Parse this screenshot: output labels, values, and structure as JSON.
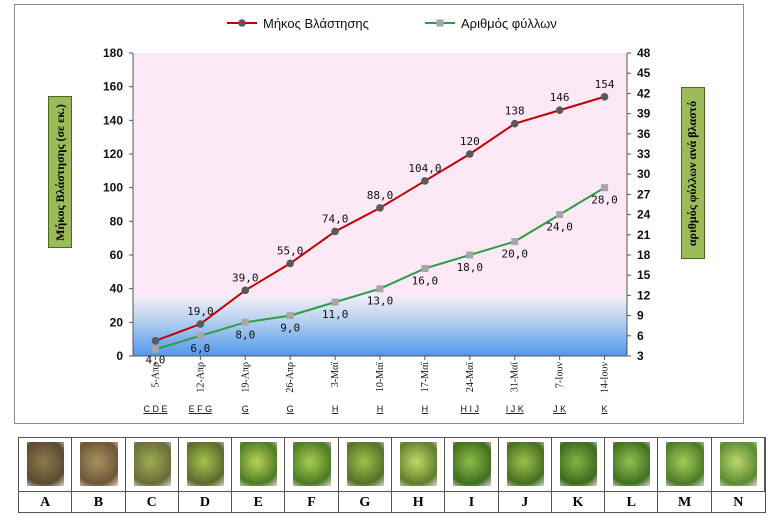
{
  "chart_data": {
    "type": "line",
    "title": "",
    "x": [
      "5-Απρ",
      "12-Απρ",
      "19-Απρ",
      "26-Απρ",
      "3-Μαϊ",
      "10-Μαϊ",
      "17-Μαϊ",
      "24-Μαϊ",
      "31-Μαϊ",
      "7-Ιουν",
      "14-Ιουν"
    ],
    "stages": [
      "C D E",
      "E F G",
      "G",
      "G",
      "H",
      "H",
      "H",
      "H I J",
      "I J K",
      "J K",
      "K"
    ],
    "series": [
      {
        "name": "Μήκος Βλάστησης",
        "axis": "left",
        "color": "#c00000",
        "marker_color": "#595959",
        "values": [
          9,
          19,
          39,
          55,
          74,
          88,
          104,
          120,
          138,
          146,
          154
        ],
        "labels": [
          "",
          "19,0",
          "39,0",
          "55,0",
          "74,0",
          "88,0",
          "104,0",
          "120",
          "138",
          "146",
          "154"
        ]
      },
      {
        "name": "Αριθμός φύλλων",
        "axis": "right",
        "color": "#2e9e45",
        "marker_color": "#a6a6a6",
        "values": [
          4,
          6,
          8,
          9,
          11,
          13,
          16,
          18,
          20,
          24,
          28
        ],
        "labels": [
          "4,0",
          "6,0",
          "8,0",
          "9,0",
          "11,0",
          "13,0",
          "16,0",
          "18,0",
          "20,0",
          "24,0",
          "28,0"
        ]
      }
    ],
    "ylabel": "Μήκος Βλάστησης (σε εκ.)",
    "ylabel_right": "αριθμός φύλλων ανά βλαστό",
    "ylim": [
      0,
      180
    ],
    "yticks": [
      0,
      20,
      40,
      60,
      80,
      100,
      120,
      140,
      160,
      180
    ],
    "ylim_right": [
      3,
      48
    ],
    "yticks_right": [
      3,
      6,
      9,
      12,
      15,
      18,
      21,
      24,
      27,
      30,
      33,
      36,
      39,
      42,
      45,
      48
    ],
    "legend_position": "top-center",
    "background_bands": {
      "upper": "#fde8f6",
      "lower_start": "#d6e4f5",
      "lower_end": "#4f97ec"
    }
  },
  "photo_strip": {
    "labels": [
      "A",
      "B",
      "C",
      "D",
      "E",
      "F",
      "G",
      "H",
      "I",
      "J",
      "K",
      "L",
      "M",
      "N"
    ]
  }
}
